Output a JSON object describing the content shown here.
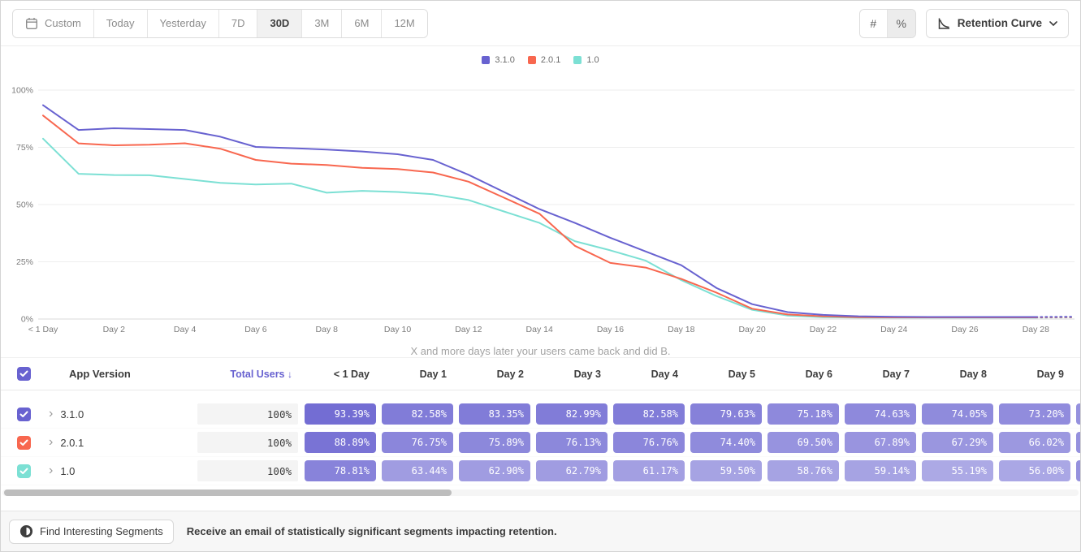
{
  "toolbar": {
    "date_buttons": [
      {
        "label": "Custom",
        "icon": "calendar",
        "active": false
      },
      {
        "label": "Today",
        "active": false
      },
      {
        "label": "Yesterday",
        "active": false
      },
      {
        "label": "7D",
        "active": false
      },
      {
        "label": "30D",
        "active": true
      },
      {
        "label": "3M",
        "active": false
      },
      {
        "label": "6M",
        "active": false
      },
      {
        "label": "12M",
        "active": false
      }
    ],
    "value_mode": [
      {
        "glyph": "#",
        "name": "absolute-numbers",
        "active": false
      },
      {
        "glyph": "%",
        "name": "percentages",
        "active": true
      }
    ],
    "view_dropdown": {
      "label": "Retention Curve"
    }
  },
  "legend": [
    {
      "label": "3.1.0",
      "color": "#6862d0"
    },
    {
      "label": "2.0.1",
      "color": "#f8674f"
    },
    {
      "label": "1.0",
      "color": "#7ce0d4"
    }
  ],
  "chart_data": {
    "type": "line",
    "caption": "X and more days later your users came back and did B.",
    "ylim": [
      0,
      100
    ],
    "xlim_days": [
      0,
      29
    ],
    "grid": true,
    "legend_position": "top-center",
    "dashed_tail_from_day": 28,
    "y_ticks": [
      {
        "label": "100%",
        "value": 100
      },
      {
        "label": "75%",
        "value": 75
      },
      {
        "label": "50%",
        "value": 50
      },
      {
        "label": "25%",
        "value": 25
      },
      {
        "label": "0%",
        "value": 0
      }
    ],
    "x_ticks": [
      {
        "label": "< 1 Day",
        "day": 0
      },
      {
        "label": "Day 2",
        "day": 2
      },
      {
        "label": "Day 4",
        "day": 4
      },
      {
        "label": "Day 6",
        "day": 6
      },
      {
        "label": "Day 8",
        "day": 8
      },
      {
        "label": "Day 10",
        "day": 10
      },
      {
        "label": "Day 12",
        "day": 12
      },
      {
        "label": "Day 14",
        "day": 14
      },
      {
        "label": "Day 16",
        "day": 16
      },
      {
        "label": "Day 18",
        "day": 18
      },
      {
        "label": "Day 20",
        "day": 20
      },
      {
        "label": "Day 22",
        "day": 22
      },
      {
        "label": "Day 24",
        "day": 24
      },
      {
        "label": "Day 26",
        "day": 26
      },
      {
        "label": "Day 28",
        "day": 28
      }
    ],
    "series": [
      {
        "name": "3.1.0",
        "color": "#6862d0",
        "values": [
          93.39,
          82.58,
          83.35,
          82.99,
          82.58,
          79.63,
          75.18,
          74.63,
          74.05,
          73.2,
          72.0,
          69.5,
          63.0,
          55.5,
          48.0,
          42.0,
          35.5,
          29.5,
          23.5,
          13.5,
          6.5,
          3.0,
          1.8,
          1.2,
          1.0,
          0.9,
          0.9,
          0.9,
          0.9,
          1.0
        ]
      },
      {
        "name": "2.0.1",
        "color": "#f8674f",
        "values": [
          88.89,
          76.75,
          75.89,
          76.13,
          76.76,
          74.4,
          69.5,
          67.89,
          67.29,
          66.02,
          65.5,
          64.0,
          60.0,
          53.0,
          46.0,
          32.0,
          24.5,
          22.5,
          17.5,
          11.5,
          4.5,
          2.0,
          1.2,
          0.8,
          0.7,
          0.7,
          0.7,
          0.7,
          0.7,
          0.8
        ]
      },
      {
        "name": "1.0",
        "color": "#7ce0d4",
        "values": [
          78.81,
          63.44,
          62.9,
          62.79,
          61.17,
          59.5,
          58.76,
          59.14,
          55.19,
          56.0,
          55.5,
          54.5,
          52.0,
          47.0,
          42.0,
          34.0,
          30.0,
          25.5,
          17.0,
          10.0,
          4.0,
          1.5,
          0.8,
          0.6,
          0.6,
          0.6,
          0.6,
          0.6,
          0.6,
          0.7
        ]
      }
    ]
  },
  "table": {
    "columns": {
      "app_version": "App Version",
      "total_users": "Total Users",
      "sort_arrow": "↓"
    },
    "header_checkbox_color": "#6862d0",
    "cell_rgb": "104,98,208",
    "day_columns": [
      "< 1 Day",
      "Day 1",
      "Day 2",
      "Day 3",
      "Day 4",
      "Day 5",
      "Day 6",
      "Day 7",
      "Day 8",
      "Day 9"
    ],
    "rows": [
      {
        "version": "3.1.0",
        "color": "#6862d0",
        "total_users": "100%",
        "values": [
          "93.39%",
          "82.58%",
          "83.35%",
          "82.99%",
          "82.58%",
          "79.63%",
          "75.18%",
          "74.63%",
          "74.05%",
          "73.20%"
        ]
      },
      {
        "version": "2.0.1",
        "color": "#f8674f",
        "total_users": "100%",
        "values": [
          "88.89%",
          "76.75%",
          "75.89%",
          "76.13%",
          "76.76%",
          "74.40%",
          "69.50%",
          "67.89%",
          "67.29%",
          "66.02%"
        ]
      },
      {
        "version": "1.0",
        "color": "#7ce0d4",
        "total_users": "100%",
        "values": [
          "78.81%",
          "63.44%",
          "62.90%",
          "62.79%",
          "61.17%",
          "59.50%",
          "58.76%",
          "59.14%",
          "55.19%",
          "56.00%"
        ]
      }
    ]
  },
  "footer": {
    "button_label": "Find Interesting Segments",
    "note": "Receive an email of statistically significant segments impacting retention."
  }
}
